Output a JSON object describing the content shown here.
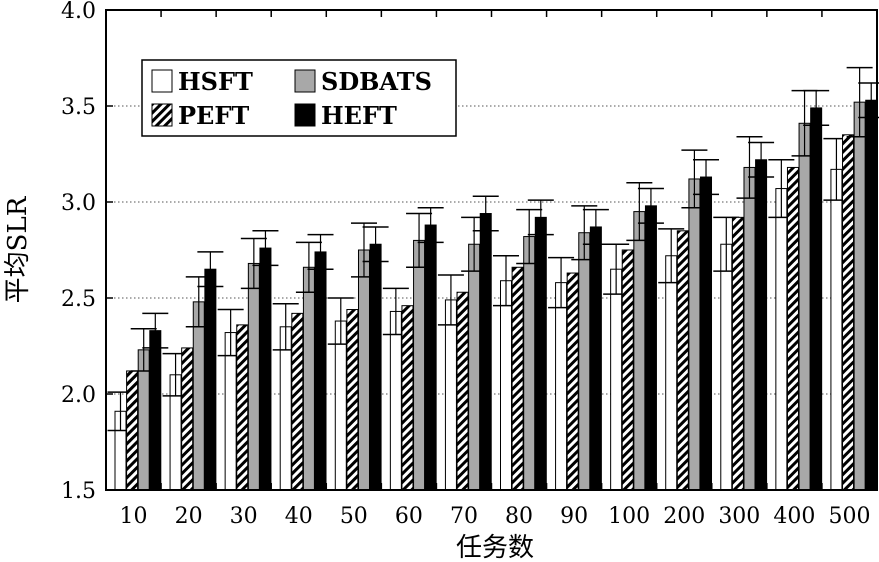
{
  "chart_data": {
    "type": "bar",
    "xlabel": "任务数",
    "ylabel": "平均SLR",
    "ylim": [
      1.5,
      4.0
    ],
    "yticks": [
      "1.5",
      "2.0",
      "2.5",
      "3.0",
      "3.5",
      "4.0"
    ],
    "grid": "y-dotted",
    "legend_position": "top-left",
    "categories": [
      "10",
      "20",
      "30",
      "40",
      "50",
      "60",
      "70",
      "80",
      "90",
      "100",
      "200",
      "300",
      "400",
      "500"
    ],
    "series": [
      {
        "name": "HSFT",
        "fill": "#ffffff",
        "values": [
          1.91,
          2.1,
          2.32,
          2.35,
          2.38,
          2.43,
          2.49,
          2.59,
          2.58,
          2.65,
          2.72,
          2.78,
          3.07,
          3.17
        ],
        "errors": [
          0.1,
          0.11,
          0.12,
          0.12,
          0.12,
          0.12,
          0.13,
          0.13,
          0.13,
          0.13,
          0.14,
          0.14,
          0.15,
          0.16
        ]
      },
      {
        "name": "PEFT",
        "fill": "hatch",
        "values": [
          2.12,
          2.24,
          2.36,
          2.42,
          2.44,
          2.46,
          2.53,
          2.66,
          2.63,
          2.75,
          2.85,
          2.92,
          3.18,
          3.35
        ]
      },
      {
        "name": "SDBATS",
        "fill": "#a8a8a8",
        "values": [
          2.23,
          2.48,
          2.68,
          2.66,
          2.75,
          2.8,
          2.78,
          2.82,
          2.84,
          2.95,
          3.12,
          3.18,
          3.41,
          3.52
        ],
        "errors": [
          0.11,
          0.13,
          0.13,
          0.13,
          0.14,
          0.14,
          0.14,
          0.14,
          0.14,
          0.15,
          0.15,
          0.16,
          0.17,
          0.18
        ]
      },
      {
        "name": "HEFT",
        "fill": "#000000",
        "values": [
          2.33,
          2.65,
          2.76,
          2.74,
          2.78,
          2.88,
          2.94,
          2.92,
          2.87,
          2.98,
          3.13,
          3.22,
          3.49,
          3.53
        ],
        "errors": [
          0.09,
          0.09,
          0.09,
          0.09,
          0.09,
          0.09,
          0.09,
          0.09,
          0.09,
          0.09,
          0.09,
          0.09,
          0.09,
          0.09
        ]
      }
    ]
  }
}
